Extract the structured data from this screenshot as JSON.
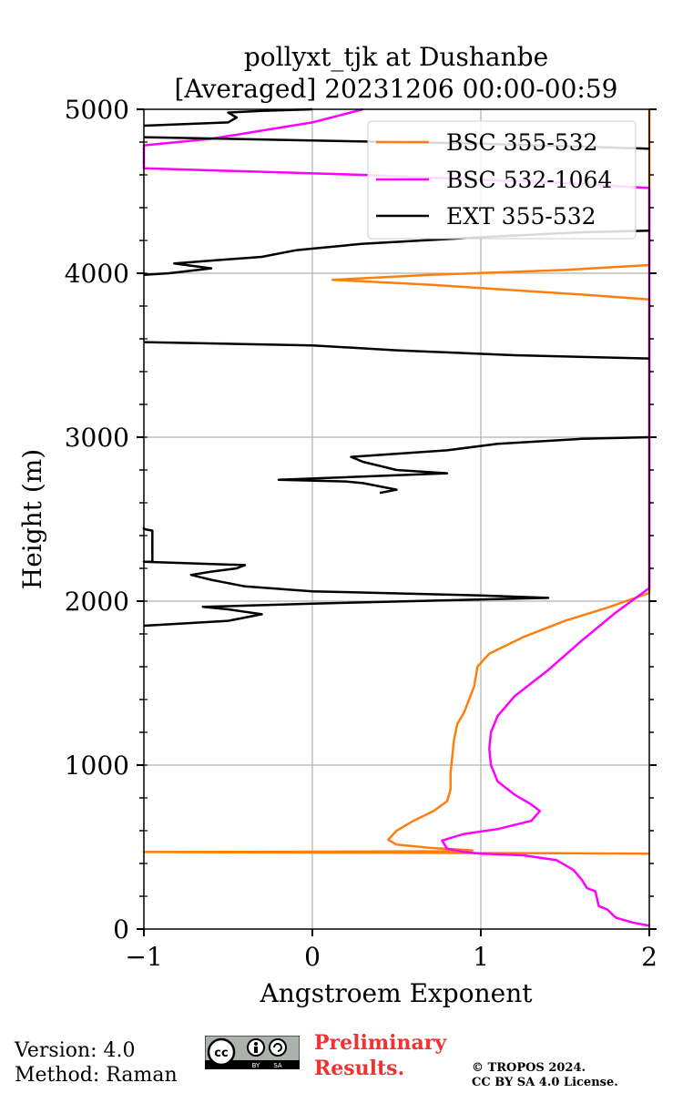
{
  "chart_data": {
    "type": "line",
    "title_line1": "pollyxt_tjk at Dushanbe",
    "title_line2": "[Averaged] 20231206 00:00-00:59",
    "xlabel": "Angstroem Exponent",
    "ylabel": "Height (m)",
    "xlim": [
      -1,
      2
    ],
    "ylim": [
      0,
      5000
    ],
    "xticks": [
      -1,
      0,
      1,
      2
    ],
    "xtick_labels": [
      "−1",
      "0",
      "1",
      "2"
    ],
    "yticks": [
      0,
      1000,
      2000,
      3000,
      4000,
      5000
    ],
    "ytick_labels": [
      "0",
      "1000",
      "2000",
      "3000",
      "4000",
      "5000"
    ],
    "grid": true,
    "legend_position": "top-right",
    "series": [
      {
        "name": "BSC 355-532",
        "color": "#ff7f0e",
        "points": [
          [
            2.0,
            460
          ],
          [
            1.5,
            462
          ],
          [
            0.5,
            465
          ],
          [
            -1.0,
            470
          ],
          [
            0.0,
            472
          ],
          [
            0.9,
            475
          ],
          [
            0.95,
            480
          ],
          [
            0.7,
            495
          ],
          [
            0.5,
            515
          ],
          [
            0.45,
            545
          ],
          [
            0.5,
            600
          ],
          [
            0.6,
            660
          ],
          [
            0.72,
            720
          ],
          [
            0.8,
            780
          ],
          [
            0.82,
            850
          ],
          [
            0.82,
            950
          ],
          [
            0.83,
            1050
          ],
          [
            0.84,
            1150
          ],
          [
            0.86,
            1250
          ],
          [
            0.9,
            1320
          ],
          [
            0.93,
            1400
          ],
          [
            0.96,
            1480
          ],
          [
            0.97,
            1540
          ],
          [
            0.98,
            1600
          ],
          [
            1.05,
            1680
          ],
          [
            1.25,
            1780
          ],
          [
            1.5,
            1880
          ],
          [
            1.75,
            1960
          ],
          [
            2.0,
            2050
          ],
          [
            2.0,
            3840
          ],
          [
            1.6,
            3870
          ],
          [
            1.0,
            3910
          ],
          [
            0.7,
            3930
          ],
          [
            0.12,
            3960
          ],
          [
            0.7,
            3990
          ],
          [
            1.5,
            4020
          ],
          [
            2.0,
            4050
          ],
          [
            2.0,
            5000
          ]
        ]
      },
      {
        "name": "BSC 532-1064",
        "color": "#ff00ff",
        "points": [
          [
            2.0,
            20
          ],
          [
            1.9,
            40
          ],
          [
            1.8,
            70
          ],
          [
            1.75,
            120
          ],
          [
            1.7,
            140
          ],
          [
            1.68,
            230
          ],
          [
            1.63,
            250
          ],
          [
            1.6,
            300
          ],
          [
            1.55,
            360
          ],
          [
            1.45,
            420
          ],
          [
            1.25,
            450
          ],
          [
            1.0,
            460
          ],
          [
            0.9,
            470
          ],
          [
            0.8,
            490
          ],
          [
            0.77,
            540
          ],
          [
            0.9,
            580
          ],
          [
            1.1,
            610
          ],
          [
            1.3,
            660
          ],
          [
            1.35,
            720
          ],
          [
            1.3,
            760
          ],
          [
            1.2,
            820
          ],
          [
            1.1,
            900
          ],
          [
            1.06,
            1000
          ],
          [
            1.05,
            1100
          ],
          [
            1.06,
            1200
          ],
          [
            1.1,
            1300
          ],
          [
            1.2,
            1420
          ],
          [
            1.4,
            1580
          ],
          [
            1.6,
            1760
          ],
          [
            1.8,
            1930
          ],
          [
            2.0,
            2080
          ],
          [
            2.0,
            4520
          ],
          [
            1.5,
            4550
          ],
          [
            0.3,
            4600
          ],
          [
            -1.0,
            4640
          ],
          [
            -1.0,
            4780
          ],
          [
            -0.6,
            4820
          ],
          [
            -0.3,
            4870
          ],
          [
            0.0,
            4920
          ],
          [
            0.3,
            5000
          ]
        ]
      },
      {
        "name": "EXT 355-532",
        "color": "#000000",
        "points": [
          [
            -1.0,
            1850
          ],
          [
            -0.5,
            1880
          ],
          [
            -0.3,
            1920
          ],
          [
            -0.5,
            1950
          ],
          [
            -0.65,
            1965
          ],
          [
            0.0,
            1985
          ],
          [
            1.4,
            2020
          ],
          [
            1.0,
            2035
          ],
          [
            0.0,
            2060
          ],
          [
            -0.4,
            2090
          ],
          [
            -0.5,
            2110
          ],
          [
            -0.6,
            2130
          ],
          [
            -0.72,
            2160
          ],
          [
            -0.6,
            2180
          ],
          [
            -0.45,
            2200
          ],
          [
            -0.4,
            2220
          ],
          [
            -1.0,
            2240
          ],
          [
            -0.95,
            2240
          ],
          [
            -0.95,
            2430
          ],
          [
            -1.0,
            2440
          ],
          [
            -1.0,
            2450
          ]
        ]
      },
      {
        "name": "",
        "color": "#000000",
        "points": [
          [
            0.4,
            2660
          ],
          [
            0.5,
            2680
          ],
          [
            0.4,
            2700
          ],
          [
            0.3,
            2720
          ],
          [
            0.2,
            2730
          ],
          [
            -0.2,
            2740
          ],
          [
            0.8,
            2780
          ],
          [
            0.5,
            2800
          ],
          [
            0.3,
            2850
          ],
          [
            0.23,
            2880
          ],
          [
            0.8,
            2920
          ],
          [
            1.1,
            2960
          ],
          [
            1.6,
            2990
          ],
          [
            2.0,
            3000
          ]
        ]
      },
      {
        "name": "",
        "color": "#000000",
        "points": [
          [
            2.0,
            3480
          ],
          [
            1.2,
            3500
          ],
          [
            0.5,
            3530
          ],
          [
            0.0,
            3560
          ],
          [
            -1.0,
            3580
          ]
        ]
      },
      {
        "name": "",
        "color": "#000000",
        "points": [
          [
            -1.0,
            3990
          ],
          [
            -0.85,
            4000
          ],
          [
            -0.6,
            4030
          ],
          [
            -0.82,
            4060
          ],
          [
            -0.3,
            4100
          ],
          [
            -0.1,
            4140
          ],
          [
            0.3,
            4180
          ],
          [
            1.0,
            4220
          ],
          [
            1.6,
            4250
          ],
          [
            2.0,
            4260
          ]
        ]
      },
      {
        "name": "",
        "color": "#000000",
        "points": [
          [
            2.0,
            4760
          ],
          [
            1.0,
            4790
          ],
          [
            0.0,
            4810
          ],
          [
            -1.0,
            4830
          ]
        ]
      },
      {
        "name": "",
        "color": "#000000",
        "points": [
          [
            -1.0,
            4900
          ],
          [
            -0.5,
            4920
          ],
          [
            -0.45,
            4950
          ],
          [
            -0.5,
            4980
          ],
          [
            -0.3,
            4990
          ],
          [
            0.0,
            5000
          ]
        ]
      }
    ]
  },
  "footer": {
    "version": "Version: 4.0",
    "method": "Method: Raman",
    "preliminary_line1": "Preliminary",
    "preliminary_line2": "Results.",
    "copyright_line1": "© TROPOS 2024.",
    "copyright_line2": "CC BY SA 4.0 License.",
    "license_badge_text": "cc BY SA"
  }
}
